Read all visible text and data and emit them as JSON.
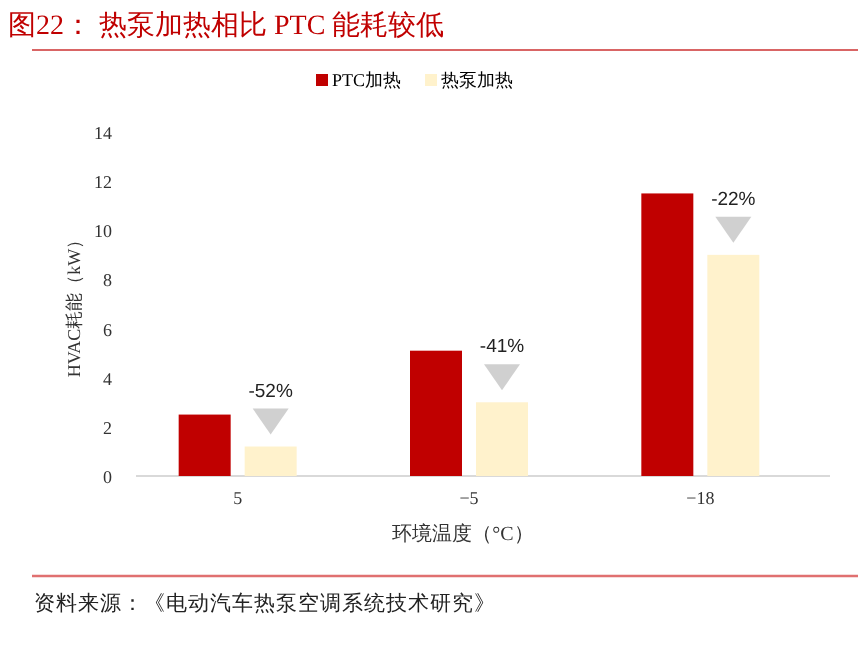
{
  "chart_data": {
    "type": "bar",
    "title": "图22：  热泵加热相比 PTC 能耗较低",
    "xlabel": "环境温度（°C）",
    "ylabel": "HVAC耗能（kW）",
    "categories": [
      "5",
      "−5",
      "−18"
    ],
    "series": [
      {
        "name": "PTC加热",
        "color": "#c00000",
        "values": [
          2.5,
          5.1,
          11.5
        ]
      },
      {
        "name": "热泵加热",
        "color": "#fff2cc",
        "values": [
          1.2,
          3.0,
          9.0
        ]
      }
    ],
    "ylim": [
      0,
      14
    ],
    "yticks": [
      0,
      2,
      4,
      6,
      8,
      10,
      12,
      14
    ],
    "legend": "top",
    "annotations": [
      {
        "text": "-52%",
        "x": "5",
        "y": 1.2
      },
      {
        "text": "-41%",
        "x": "−5",
        "y": 3.0
      },
      {
        "text": "-22%",
        "x": "−18",
        "y": 9.0
      },
      "资料来源：《电动汽车热泵空调系统技术研究》"
    ]
  }
}
